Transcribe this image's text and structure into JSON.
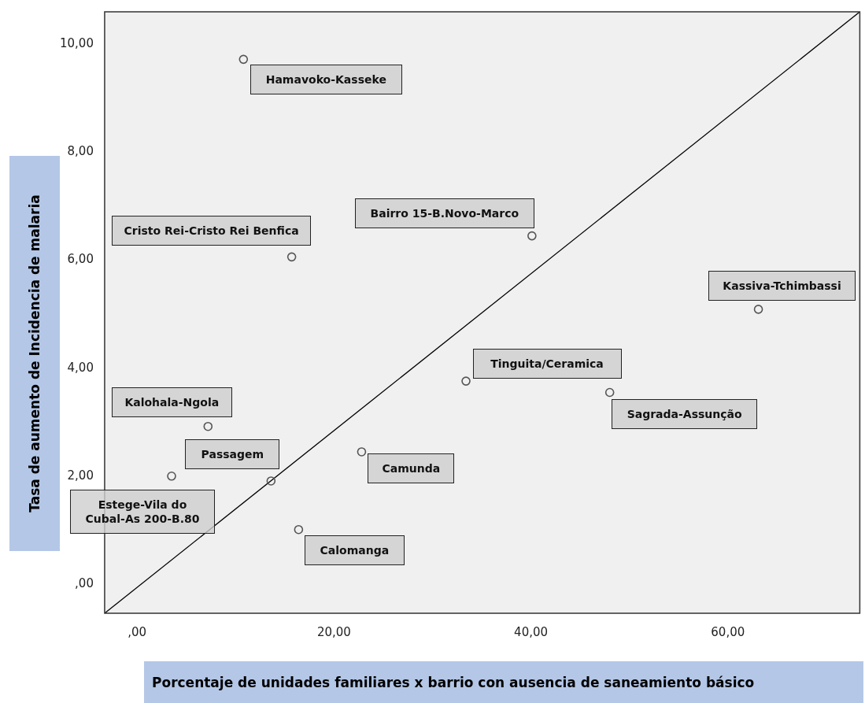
{
  "chart_data": {
    "type": "scatter",
    "xlabel": "Porcentaje de unidades familiares x barrio con ausencia de saneamiento básico",
    "ylabel": "Tasa de aumento de Incidencia de malaria",
    "series": [
      {
        "type": "scatter",
        "color": "#555555",
        "x": [
          10.8,
          15.7,
          40.1,
          63.1,
          33.4,
          48.0,
          7.2,
          22.8,
          13.6,
          3.5,
          16.4
        ],
        "values": [
          9.72,
          6.06,
          6.45,
          5.09,
          3.76,
          3.55,
          2.92,
          2.45,
          1.91,
          2.0,
          1.01
        ]
      },
      {
        "type": "line",
        "color": "#000000",
        "marker": "none",
        "x": [
          -3.3,
          73.4
        ],
        "values": [
          -0.54,
          10.6
        ]
      }
    ],
    "annotations": [
      {
        "text": "Hamavoko-Kasseke",
        "x": 10.8,
        "y": 9.72
      },
      {
        "text": "Cristo Rei-Cristo Rei Benfica",
        "x": 15.7,
        "y": 6.06
      },
      {
        "text": "Bairro 15-B.Novo-Marco",
        "x": 40.1,
        "y": 6.45
      },
      {
        "text": "Kassiva-Tchimbassi",
        "x": 63.1,
        "y": 5.09
      },
      {
        "text": "Tinguita/Ceramica",
        "x": 33.4,
        "y": 3.76
      },
      {
        "text": "Sagrada-Assunção",
        "x": 48.0,
        "y": 3.55
      },
      {
        "text": "Kalohala-Ngola",
        "x": 7.2,
        "y": 2.92
      },
      {
        "text": "Camunda",
        "x": 22.8,
        "y": 2.45
      },
      {
        "text": "Passagem",
        "x": 13.6,
        "y": 1.91
      },
      {
        "text": "Estege-Vila do Cubal-As 200-B.80",
        "x": 3.5,
        "y": 2.0
      },
      {
        "text": "Calomanga",
        "x": 16.4,
        "y": 1.01
      }
    ],
    "xlim": [
      -3.3,
      73.4
    ],
    "ylim": [
      -0.54,
      10.6
    ],
    "xticks": [
      {
        "value": 0,
        "label": ",00"
      },
      {
        "value": 20,
        "label": "20,00"
      },
      {
        "value": 40,
        "label": "40,00"
      },
      {
        "value": 60,
        "label": "60,00"
      }
    ],
    "yticks": [
      {
        "value": 0,
        "label": ",00"
      },
      {
        "value": 2,
        "label": "2,00"
      },
      {
        "value": 4,
        "label": "4,00"
      },
      {
        "value": 6,
        "label": "6,00"
      },
      {
        "value": 8,
        "label": "8,00"
      },
      {
        "value": 10,
        "label": "10,00"
      }
    ],
    "grid": false,
    "legend": false,
    "marker": "circle"
  }
}
